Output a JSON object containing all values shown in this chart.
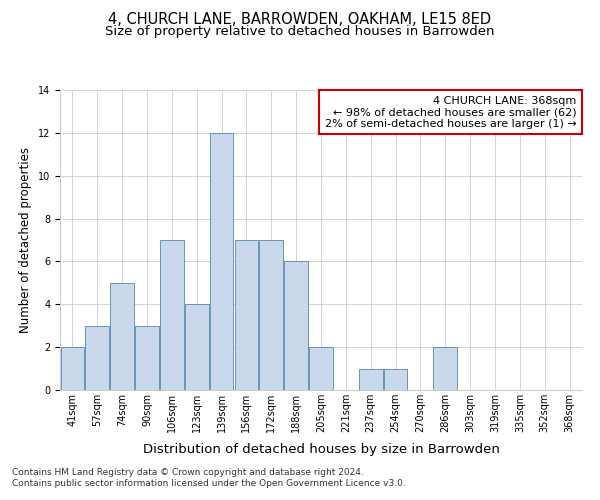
{
  "title": "4, CHURCH LANE, BARROWDEN, OAKHAM, LE15 8ED",
  "subtitle": "Size of property relative to detached houses in Barrowden",
  "xlabel": "Distribution of detached houses by size in Barrowden",
  "ylabel": "Number of detached properties",
  "bar_labels": [
    "41sqm",
    "57sqm",
    "74sqm",
    "90sqm",
    "106sqm",
    "123sqm",
    "139sqm",
    "156sqm",
    "172sqm",
    "188sqm",
    "205sqm",
    "221sqm",
    "237sqm",
    "254sqm",
    "270sqm",
    "286sqm",
    "303sqm",
    "319sqm",
    "335sqm",
    "352sqm",
    "368sqm"
  ],
  "bar_values": [
    2,
    3,
    5,
    3,
    7,
    4,
    12,
    7,
    7,
    6,
    2,
    0,
    1,
    1,
    0,
    2,
    0,
    0,
    0,
    0,
    0
  ],
  "bar_color": "#c9d9eb",
  "bar_edgecolor": "#5588aa",
  "ylim": [
    0,
    14
  ],
  "yticks": [
    0,
    2,
    4,
    6,
    8,
    10,
    12,
    14
  ],
  "annotation_title": "4 CHURCH LANE: 368sqm",
  "annotation_line1": "← 98% of detached houses are smaller (62)",
  "annotation_line2": "2% of semi-detached houses are larger (1) →",
  "annotation_box_color": "#ffffff",
  "annotation_border_color": "#cc0000",
  "footer_line1": "Contains HM Land Registry data © Crown copyright and database right 2024.",
  "footer_line2": "Contains public sector information licensed under the Open Government Licence v3.0.",
  "background_color": "#ffffff",
  "grid_color": "#cccccc",
  "title_fontsize": 10.5,
  "subtitle_fontsize": 9.5,
  "ylabel_fontsize": 8.5,
  "xlabel_fontsize": 9.5,
  "tick_fontsize": 7,
  "annotation_fontsize": 8,
  "footer_fontsize": 6.5
}
